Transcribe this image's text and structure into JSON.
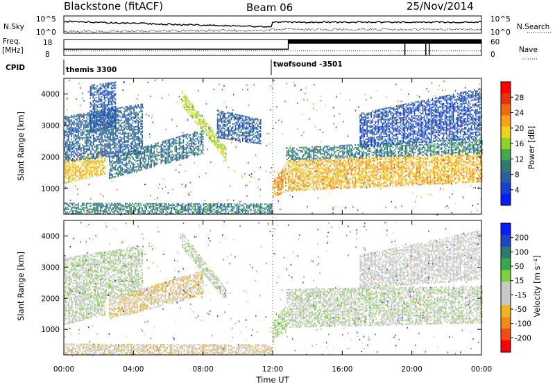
{
  "header": {
    "station": "Blackstone (fitACF)",
    "beam": "Beam 06",
    "date": "25/Nov/2014"
  },
  "status_panels": {
    "nsky": {
      "label": "N.Sky",
      "right_label": "N.Search",
      "left_ticks": [
        "10^5",
        "10^0"
      ],
      "right_ticks": [
        "10^5",
        "10^0"
      ]
    },
    "freq": {
      "label_line1": "Freq.",
      "label_line2": "[MHz]",
      "right_label": "Nave",
      "left_ticks": [
        "18",
        "8"
      ],
      "right_ticks": [
        "60",
        "0"
      ]
    },
    "cpid": {
      "label": "CPID",
      "programs": [
        {
          "name": "themis 3300",
          "start_hour": 0.0
        },
        {
          "name": "twofsound -3501",
          "start_hour": 12.0
        }
      ]
    }
  },
  "time_axis": {
    "label": "Time UT",
    "tick_labels": [
      "00:00",
      "04:00",
      "08:00",
      "12:00",
      "16:00",
      "20:00",
      "00:00"
    ],
    "range_hours": [
      0,
      24
    ]
  },
  "chart_data": [
    {
      "type": "heatmap",
      "name": "power",
      "ylabel": "Slant Range [km]",
      "ylim": [
        180,
        4500
      ],
      "ytick_labels": [
        "1000",
        "2000",
        "3000",
        "4000"
      ],
      "yticks": [
        1000,
        2000,
        3000,
        4000
      ],
      "colorbar": {
        "label": "Power [dB]",
        "range": [
          0,
          32
        ],
        "ticks": [
          "4",
          "8",
          "12",
          "16",
          "20",
          "24",
          "28"
        ],
        "colors": [
          "#0a1aff",
          "#1840d8",
          "#2a5fa8",
          "#2f7a6f",
          "#3ea94f",
          "#8fd02a",
          "#f2d21a",
          "#f7a21a",
          "#f46a14",
          "#e83010",
          "#ff0000"
        ]
      },
      "bands": [
        {
          "t_start": 0.0,
          "t_end": 2.4,
          "r_low": 1150,
          "r_high": 1850,
          "r_low_end": 1450,
          "r_high_end": 2200,
          "value": 20
        },
        {
          "t_start": 0.0,
          "t_end": 4.5,
          "r_low": 1850,
          "r_high": 3300,
          "r_low_end": 2100,
          "r_high_end": 3700,
          "value": 8
        },
        {
          "t_start": 1.5,
          "t_end": 3.0,
          "r_low": 2800,
          "r_high": 4300,
          "r_low_end": 2900,
          "r_high_end": 4400,
          "value": 7
        },
        {
          "t_start": 2.6,
          "t_end": 8.0,
          "r_low": 1300,
          "r_high": 2000,
          "r_low_end": 2100,
          "r_high_end": 2900,
          "value": 9
        },
        {
          "t_start": 6.8,
          "t_end": 9.3,
          "r_low": 3600,
          "r_high": 4100,
          "r_low_end": 1900,
          "r_high_end": 2300,
          "value": 17
        },
        {
          "t_start": 8.8,
          "t_end": 11.3,
          "r_low": 2600,
          "r_high": 3500,
          "r_low_end": 2400,
          "r_high_end": 3200,
          "value": 7
        },
        {
          "t_start": 0.0,
          "t_end": 12.0,
          "r_low": 180,
          "r_high": 550,
          "r_low_end": 180,
          "r_high_end": 520,
          "value": 10
        },
        {
          "t_start": 12.0,
          "t_end": 12.8,
          "r_low": 700,
          "r_high": 1250,
          "r_low_end": 900,
          "r_high_end": 1800,
          "value": 23
        },
        {
          "t_start": 12.8,
          "t_end": 24.0,
          "r_low": 900,
          "r_high": 1900,
          "r_low_end": 1200,
          "r_high_end": 2100,
          "value": 21
        },
        {
          "t_start": 12.8,
          "t_end": 24.0,
          "r_low": 1900,
          "r_high": 2300,
          "r_low_end": 2100,
          "r_high_end": 2600,
          "value": 10
        },
        {
          "t_start": 17.0,
          "t_end": 24.0,
          "r_low": 2300,
          "r_high": 3400,
          "r_low_end": 2600,
          "r_high_end": 4200,
          "value": 6
        }
      ]
    },
    {
      "type": "heatmap",
      "name": "velocity",
      "ylabel": "Slant Range [km]",
      "ylim": [
        180,
        4500
      ],
      "ytick_labels": [
        "1000",
        "2000",
        "3000",
        "4000"
      ],
      "yticks": [
        1000,
        2000,
        3000,
        4000
      ],
      "colorbar": {
        "label": "Velocity [m s⁻¹]",
        "range": [
          -250,
          250
        ],
        "ticks": [
          "200",
          "100",
          "50",
          "15",
          "-15",
          "-50",
          "-100",
          "-200"
        ],
        "colors": [
          "#ff0000",
          "#f44a14",
          "#f28a18",
          "#f2b21a",
          "#c8c8c8",
          "#c8c8c8",
          "#7ad23c",
          "#3aa64a",
          "#2e7a70",
          "#1e44c8",
          "#0a1aff"
        ]
      },
      "bands": [
        {
          "t_start": 0.0,
          "t_end": 2.4,
          "r_low": 1150,
          "r_high": 1850,
          "r_low_end": 1450,
          "r_high_end": 2200,
          "value": 0
        },
        {
          "t_start": 0.0,
          "t_end": 4.5,
          "r_low": 1850,
          "r_high": 3300,
          "r_low_end": 2100,
          "r_high_end": 3700,
          "value": 5
        },
        {
          "t_start": 2.6,
          "t_end": 8.0,
          "r_low": 1300,
          "r_high": 2000,
          "r_low_end": 2100,
          "r_high_end": 2900,
          "value": -60
        },
        {
          "t_start": 6.8,
          "t_end": 9.3,
          "r_low": 3600,
          "r_high": 4100,
          "r_low_end": 1900,
          "r_high_end": 2300,
          "value": 0
        },
        {
          "t_start": 0.0,
          "t_end": 12.0,
          "r_low": 180,
          "r_high": 550,
          "r_low_end": 180,
          "r_high_end": 520,
          "value": -45
        },
        {
          "t_start": 12.0,
          "t_end": 12.8,
          "r_low": 700,
          "r_high": 1250,
          "r_low_end": 900,
          "r_high_end": 1800,
          "value": 30
        },
        {
          "t_start": 12.8,
          "t_end": 24.0,
          "r_low": 1050,
          "r_high": 2300,
          "r_low_end": 1200,
          "r_high_end": 2400,
          "value": 0
        },
        {
          "t_start": 17.0,
          "t_end": 24.0,
          "r_low": 2300,
          "r_high": 3400,
          "r_low_end": 2600,
          "r_high_end": 4200,
          "value": -20
        }
      ]
    }
  ]
}
